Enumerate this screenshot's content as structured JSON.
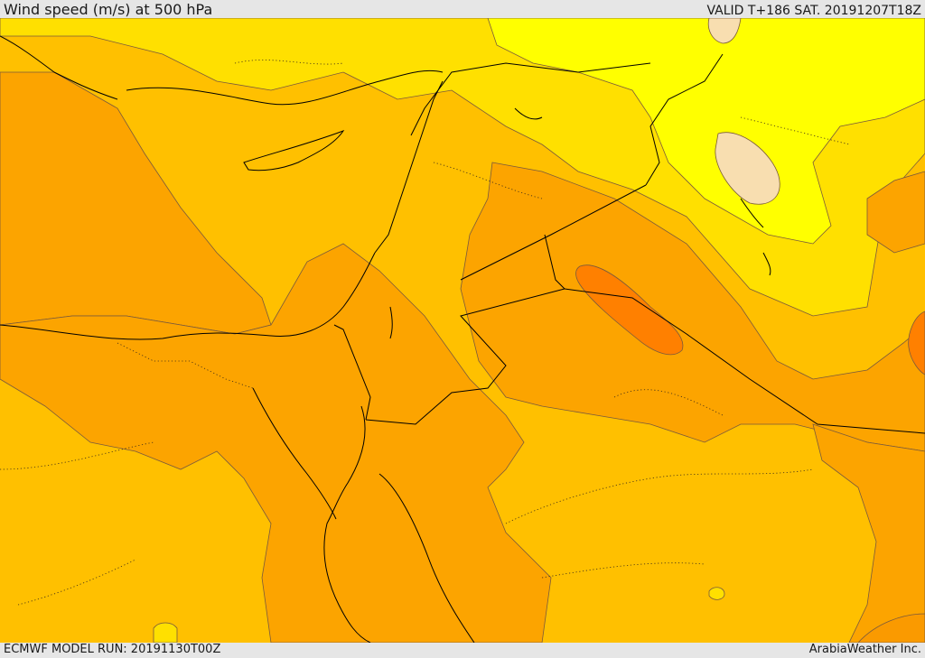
{
  "header": {
    "title": "Wind speed (m/s) at 500 hPa",
    "valid_time": "VALID T+186 SAT. 20191207T18Z"
  },
  "footer": {
    "model_run": "ECMWF MODEL RUN: 20191130T00Z",
    "credit": "ArabiaWeather Inc."
  },
  "map": {
    "field": "wind speed at 500 hPa",
    "units": "m/s",
    "colors": {
      "band_lightest": "#f8deb0",
      "band_yellow_bright": "#ffff00",
      "band_yellow": "#ffe000",
      "band_gold": "#ffc000",
      "band_orange_light": "#fca400",
      "band_orange": "#fa9a00",
      "band_orange_dark": "#ff8000",
      "contour_line": "#7a5a3c",
      "coastline": "#000000",
      "border": "#000000"
    }
  }
}
